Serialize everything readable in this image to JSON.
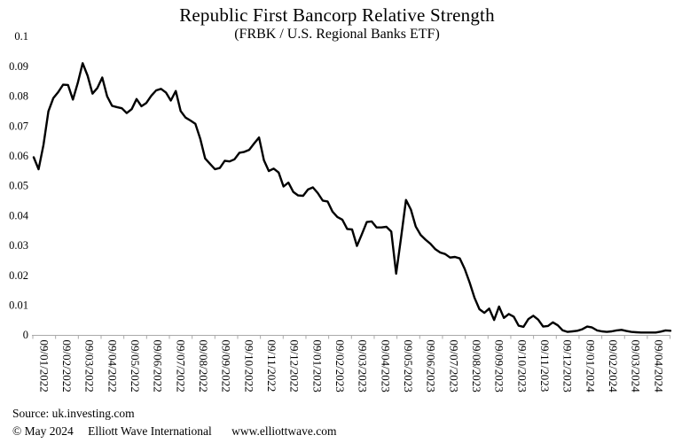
{
  "header": {
    "title": "Republic First Bancorp Relative Strength",
    "subtitle": "(FRBK / U.S. Regional Banks ETF)"
  },
  "footer": {
    "source": "Source: uk.investing.com",
    "copyright": "© May 2024",
    "organization": "Elliott Wave International",
    "website": "www.elliottwave.com"
  },
  "chart_data": {
    "type": "line",
    "title": "Republic First Bancorp Relative Strength",
    "subtitle": "(FRBK / U.S. Regional Banks ETF)",
    "grid": false,
    "legend": false,
    "ylim": [
      0,
      0.1
    ],
    "y_tick_labels": [
      "0.1",
      "0.09",
      "0.08",
      "0.07",
      "0.06",
      "0.05",
      "0.04",
      "0.03",
      "0.02",
      "0.01",
      "0"
    ],
    "x_tick_labels": [
      "09/01/2022",
      "09/02/2022",
      "09/03/2022",
      "09/04/2022",
      "09/05/2022",
      "09/06/2022",
      "09/07/2022",
      "09/08/2022",
      "09/09/2022",
      "09/10/2022",
      "09/11/2022",
      "09/12/2022",
      "09/01/2023",
      "09/02/2023",
      "09/03/2023",
      "09/04/2023",
      "09/05/2023",
      "09/06/2023",
      "09/07/2023",
      "09/08/2023",
      "09/09/2023",
      "09/10/2023",
      "09/11/2023",
      "09/12/2023",
      "09/01/2024",
      "09/02/2024",
      "09/03/2024",
      "09/04/2024"
    ],
    "line_color": "#000000",
    "axis_color": "#a9a9a9",
    "text_color": "#000000",
    "values": [
      0.0595,
      0.0555,
      0.0636,
      0.0749,
      0.0793,
      0.0813,
      0.0838,
      0.0837,
      0.0788,
      0.0844,
      0.091,
      0.0868,
      0.0808,
      0.0827,
      0.0862,
      0.0799,
      0.0767,
      0.0763,
      0.0759,
      0.0743,
      0.0756,
      0.079,
      0.0766,
      0.0777,
      0.0801,
      0.0819,
      0.0824,
      0.0812,
      0.0785,
      0.0817,
      0.075,
      0.0728,
      0.0718,
      0.0707,
      0.0657,
      0.0591,
      0.0573,
      0.0555,
      0.0559,
      0.0583,
      0.0581,
      0.0588,
      0.061,
      0.0613,
      0.062,
      0.0641,
      0.0661,
      0.0585,
      0.0549,
      0.0557,
      0.0544,
      0.0497,
      0.051,
      0.0479,
      0.0467,
      0.0466,
      0.0487,
      0.0494,
      0.0475,
      0.045,
      0.0447,
      0.0413,
      0.0395,
      0.0386,
      0.0355,
      0.0353,
      0.0298,
      0.0337,
      0.0378,
      0.038,
      0.036,
      0.036,
      0.0362,
      0.0346,
      0.0205,
      0.0325,
      0.0452,
      0.042,
      0.0363,
      0.0335,
      0.0319,
      0.0305,
      0.0287,
      0.0276,
      0.0271,
      0.0259,
      0.0261,
      0.0256,
      0.0221,
      0.0175,
      0.0124,
      0.0086,
      0.0074,
      0.0088,
      0.005,
      0.0095,
      0.0057,
      0.007,
      0.0061,
      0.0031,
      0.0027,
      0.0053,
      0.0064,
      0.0051,
      0.0028,
      0.003,
      0.0042,
      0.0032,
      0.0015,
      0.001,
      0.0012,
      0.0014,
      0.0019,
      0.0028,
      0.0025,
      0.0015,
      0.0012,
      0.001,
      0.0012,
      0.0015,
      0.0017,
      0.0013,
      0.001,
      0.0009,
      0.0008,
      0.0008,
      0.0008,
      0.0008,
      0.0011,
      0.0015,
      0.0014
    ]
  }
}
